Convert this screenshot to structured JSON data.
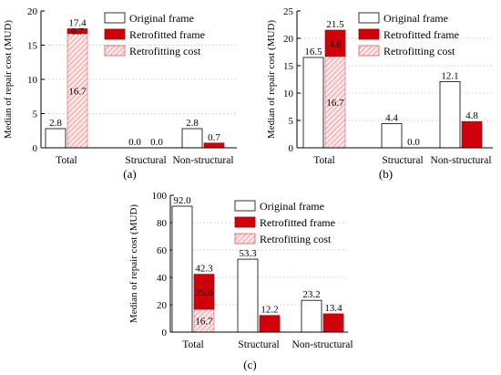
{
  "colors": {
    "original": "#ffffff",
    "retrofitted": "#d0000b",
    "retrofitting_hatch": "#f08a90",
    "retrofitting_bg": "#fde9ea",
    "axis": "#000000",
    "grid": "#b0b0b0"
  },
  "legend": {
    "original": "Original frame",
    "retrofitted": "Retrofitted frame",
    "retrofitting": "Retrofitting cost"
  },
  "chart_data": [
    {
      "type": "bar",
      "panel_label": "(a)",
      "ylabel": "Median of repair cost (MUD)",
      "ylim": [
        0,
        20
      ],
      "yticks": [
        0,
        5,
        10,
        15,
        20
      ],
      "categories": [
        "Total",
        "Structural",
        "Non-structural"
      ],
      "original": [
        2.8,
        0.0,
        2.8
      ],
      "retrofitted": [
        0.7,
        0.0,
        0.7
      ],
      "retrofitting": [
        16.7,
        null,
        null
      ],
      "retrofitted_total": [
        17.4,
        0.0,
        0.7
      ],
      "grid": true,
      "legend_position": "top-right"
    },
    {
      "type": "bar",
      "panel_label": "(b)",
      "ylabel": "Median of repair cost (MUD)",
      "ylim": [
        0,
        25
      ],
      "yticks": [
        0,
        5,
        10,
        15,
        20,
        25
      ],
      "categories": [
        "Total",
        "Structural",
        "Non-structural"
      ],
      "original": [
        16.5,
        4.4,
        12.1
      ],
      "retrofitted": [
        4.8,
        0.0,
        4.8
      ],
      "retrofitting": [
        16.7,
        null,
        null
      ],
      "retrofitted_total": [
        21.5,
        0.0,
        4.8
      ],
      "grid": true,
      "legend_position": "top-right"
    },
    {
      "type": "bar",
      "panel_label": "(c)",
      "ylabel": "Median of repair cost (MUD)",
      "ylim": [
        0,
        100
      ],
      "yticks": [
        0,
        20,
        40,
        60,
        80,
        100
      ],
      "categories": [
        "Total",
        "Structural",
        "Non-structural"
      ],
      "original": [
        92.0,
        53.3,
        23.2
      ],
      "retrofitted": [
        25.6,
        12.2,
        13.4
      ],
      "retrofitting": [
        16.7,
        null,
        null
      ],
      "retrofitted_total": [
        42.3,
        12.2,
        13.4
      ],
      "grid": true,
      "legend_position": "top-right"
    }
  ]
}
